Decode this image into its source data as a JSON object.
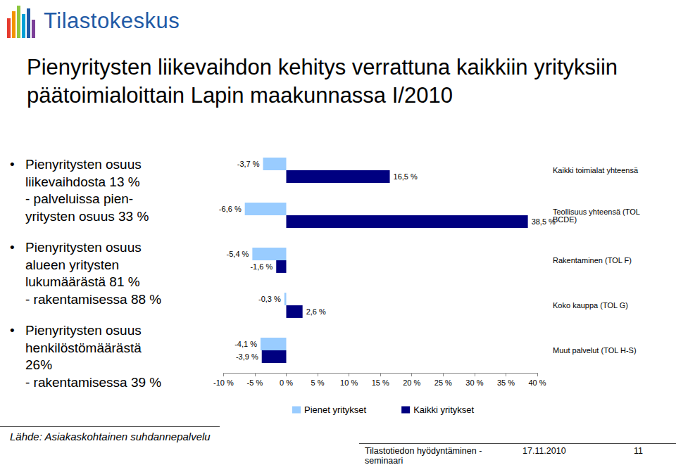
{
  "slide": {
    "logo": "Tilastokeskus",
    "title": "Pienyritysten liikevaihdon kehitys verrattuna kaikkiin yrityksiin päätoimialoittain Lapin maakunnassa I/2010",
    "bullets": [
      [
        "Pienyritysten osuus",
        "liikevaihdosta 13 %",
        "- palveluissa pien-",
        "yritysten osuus 33 %"
      ],
      [
        "Pienyritysten osuus",
        "alueen yritysten",
        "lukumäärästä 81 %",
        "- rakentamisessa 88 %"
      ],
      [
        "Pienyritysten osuus",
        "henkilöstömäärästä",
        "26%",
        "- rakentamisessa 39 %"
      ]
    ],
    "source": "Lähde: Asiakaskohtainen suhdannepalvelu",
    "footer": {
      "event": "Tilastotiedon hyödyntäminen - seminaari",
      "date": "17.11.2010",
      "page": "11"
    }
  },
  "chart_data": {
    "type": "bar",
    "orientation": "horizontal",
    "categories": [
      "Kaikki toimialat yhteensä",
      "Teollisuus yhteensä (TOL BCDE)",
      "Rakentaminen (TOL F)",
      "Koko kauppa (TOL G)",
      "Muut palvelut (TOL H-S)"
    ],
    "series": [
      {
        "name": "Pienet yritykset",
        "color": "#99ccff",
        "values": [
          -3.7,
          -6.6,
          -5.4,
          -0.3,
          -4.1
        ],
        "value_labels": [
          "-3,7 %",
          "-6,6 %",
          "-5,4 %",
          "-0,3 %",
          "-4,1 %"
        ]
      },
      {
        "name": "Kaikki yritykset",
        "color": "#000080",
        "values": [
          16.5,
          38.5,
          -1.6,
          2.6,
          -3.9
        ],
        "value_labels": [
          "16,5 %",
          "38,5 %",
          "-1,6 %",
          "2,6 %",
          "-3,9 %"
        ]
      }
    ],
    "xlim": [
      -10,
      40
    ],
    "xticks": [
      {
        "value": -10,
        "label": "-10 %"
      },
      {
        "value": -5,
        "label": "-5 %"
      },
      {
        "value": 0,
        "label": "0 %"
      },
      {
        "value": 5,
        "label": "5 %"
      },
      {
        "value": 10,
        "label": "10 %"
      },
      {
        "value": 15,
        "label": "15 %"
      },
      {
        "value": 20,
        "label": "20 %"
      },
      {
        "value": 25,
        "label": "25 %"
      },
      {
        "value": 30,
        "label": "30 %"
      },
      {
        "value": 35,
        "label": "35 %"
      },
      {
        "value": 40,
        "label": "40 %"
      }
    ],
    "data_labels": true,
    "grid": false,
    "legend": "bottom"
  }
}
